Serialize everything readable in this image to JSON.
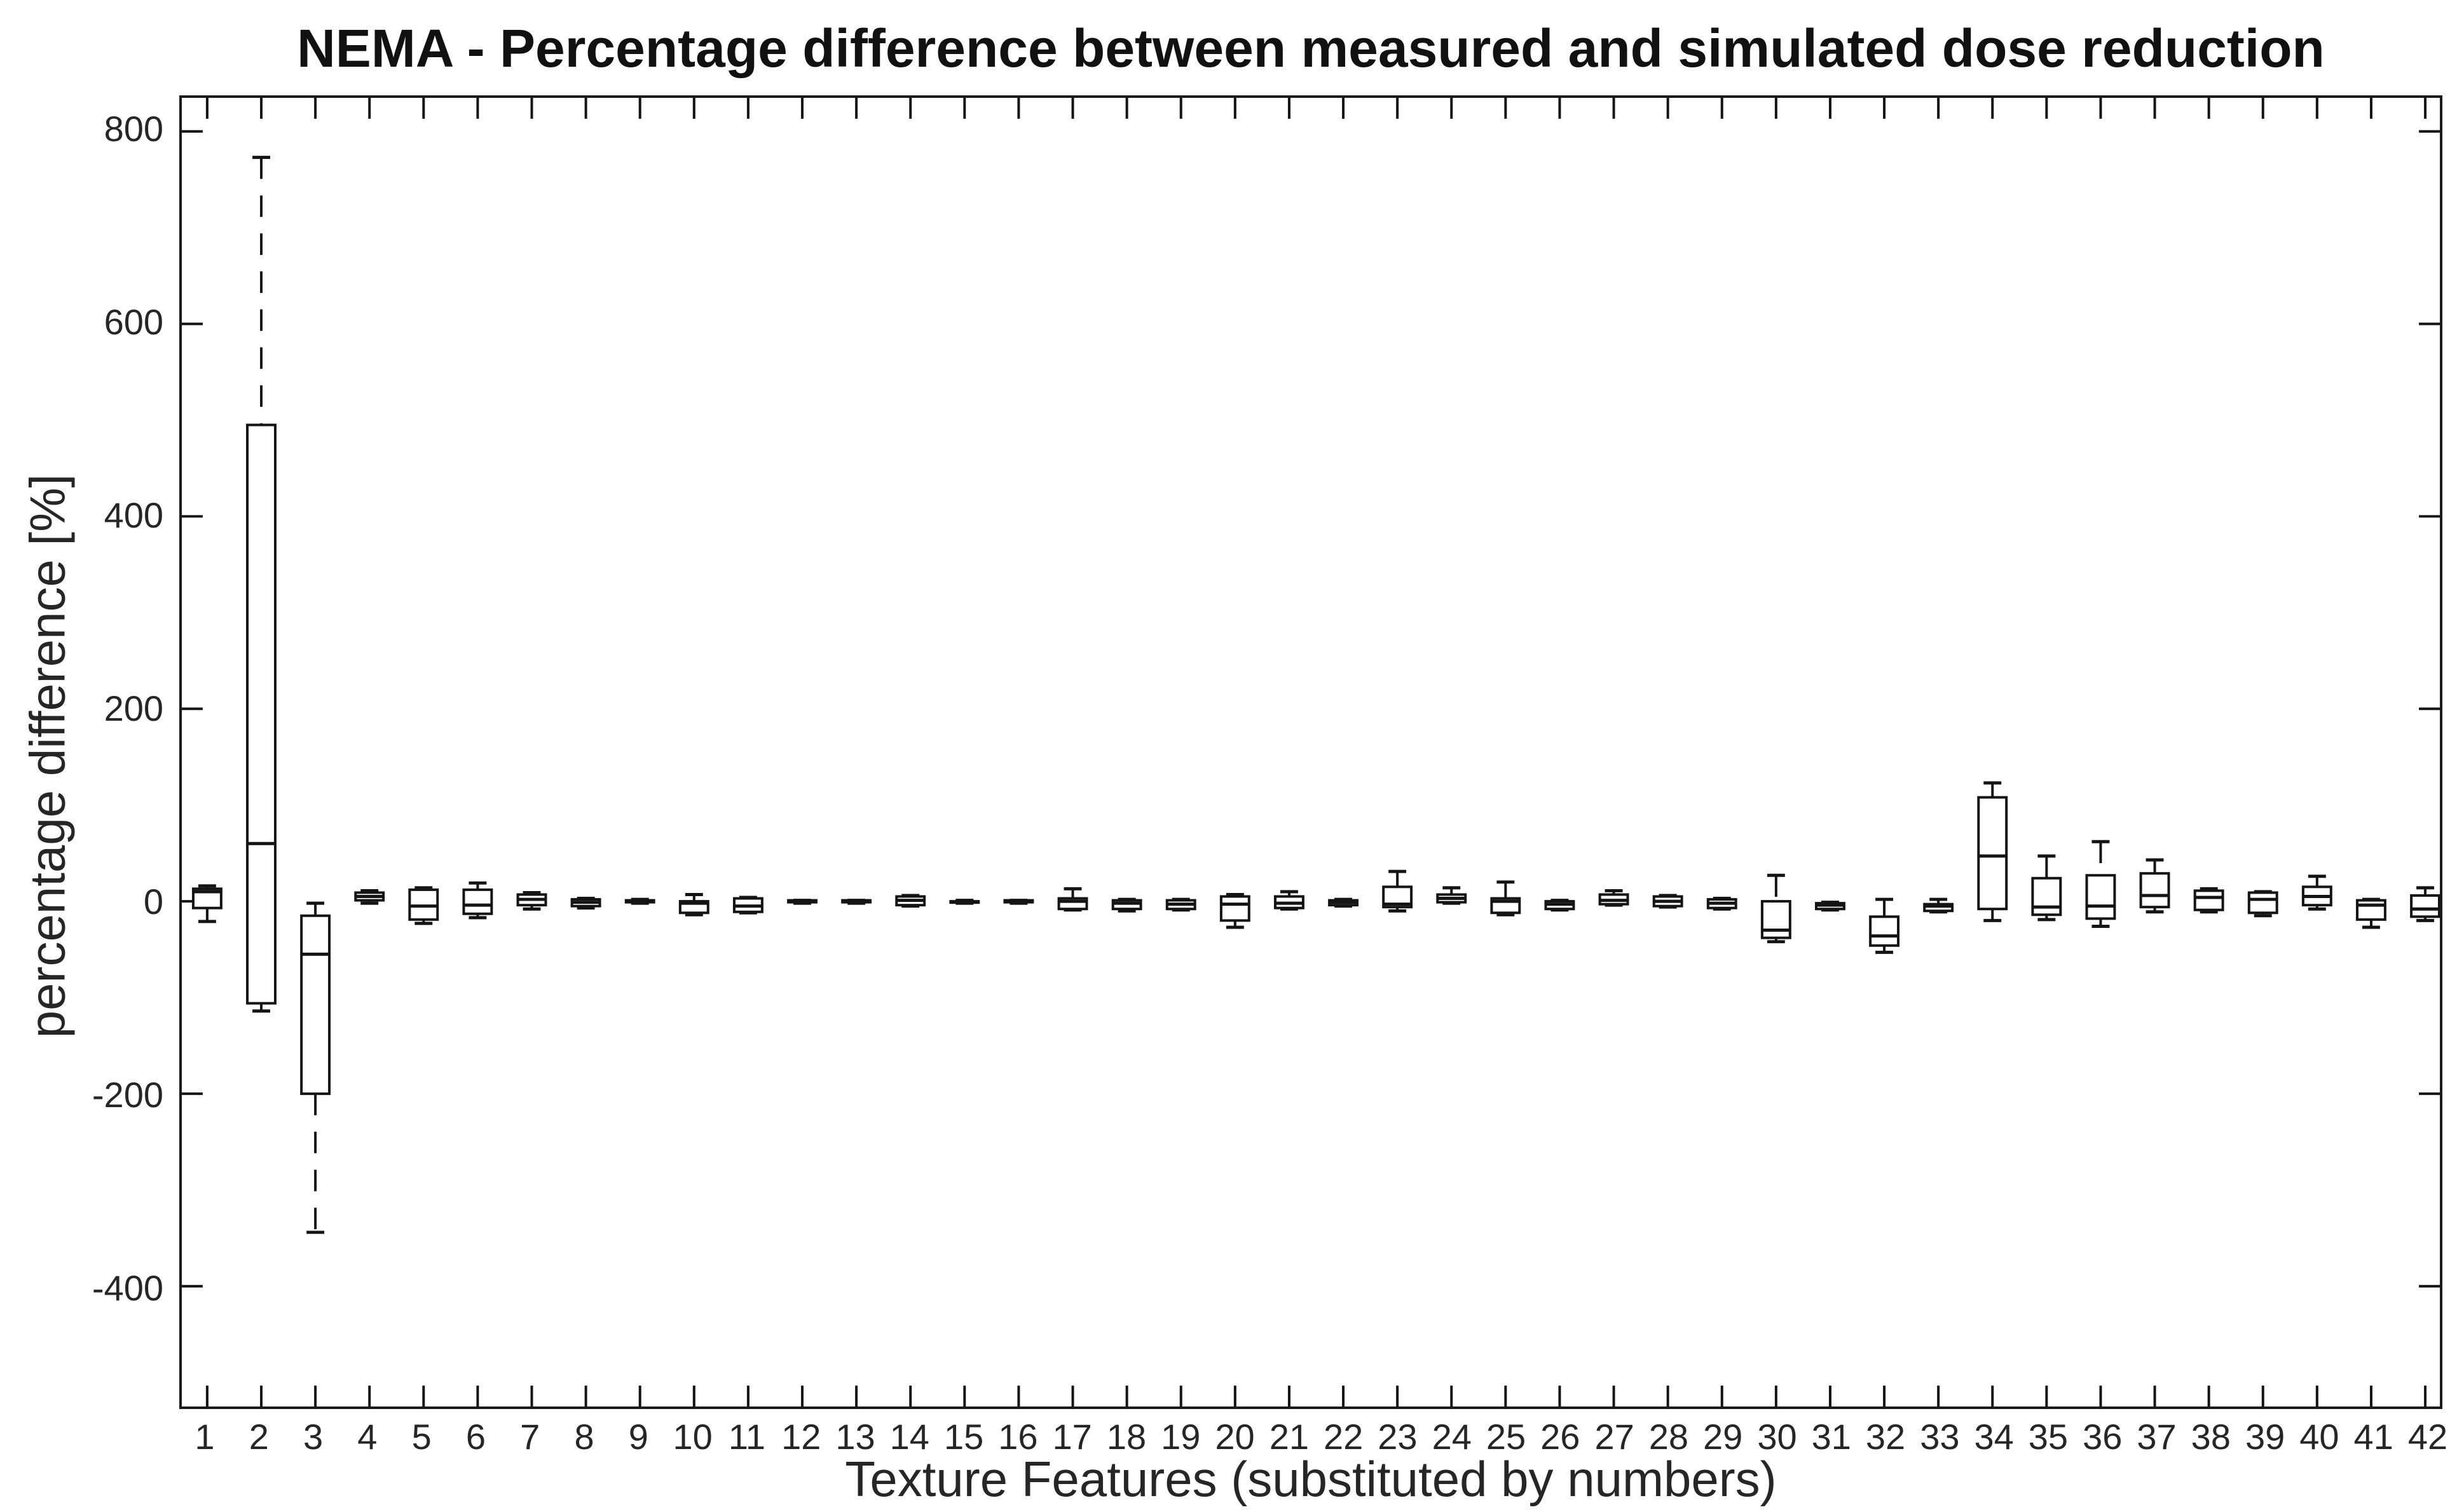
{
  "chart_data": {
    "type": "boxplot",
    "title": "NEMA - Percentage difference between measured and simulated dose reduction",
    "xlabel": "Texture Features (substituted by numbers)",
    "ylabel": "percentage difference [%]",
    "x_tick_labels": [
      "1",
      "2",
      "3",
      "4",
      "5",
      "6",
      "7",
      "8",
      "9",
      "10",
      "11",
      "12",
      "13",
      "14",
      "15",
      "16",
      "17",
      "18",
      "19",
      "20",
      "21",
      "22",
      "23",
      "24",
      "25",
      "26",
      "27",
      "28",
      "29",
      "30",
      "31",
      "32",
      "33",
      "34",
      "35",
      "36",
      "37",
      "38",
      "39",
      "40",
      "41",
      "42"
    ],
    "y_ticks": [
      800,
      600,
      400,
      200,
      0,
      -200,
      -400
    ],
    "ylim": [
      -525,
      835
    ],
    "xlim": [
      0.5,
      42.5
    ],
    "grid": false,
    "legend": "none",
    "boxes": [
      {
        "x": 1,
        "whisker_low": -21,
        "q1": -7,
        "median": 10,
        "q3": 13,
        "whisker_high": 16
      },
      {
        "x": 2,
        "whisker_low": -114,
        "q1": -106,
        "median": 60,
        "q3": 495,
        "whisker_high": 773
      },
      {
        "x": 3,
        "whisker_low": -344,
        "q1": -200,
        "median": -55,
        "q3": -15,
        "whisker_high": -2
      },
      {
        "x": 4,
        "whisker_low": -2,
        "q1": 1,
        "median": 5,
        "q3": 9,
        "whisker_high": 11
      },
      {
        "x": 5,
        "whisker_low": -23,
        "q1": -19,
        "median": -5,
        "q3": 12,
        "whisker_high": 14
      },
      {
        "x": 6,
        "whisker_low": -17,
        "q1": -13,
        "median": -4,
        "q3": 12,
        "whisker_high": 19
      },
      {
        "x": 7,
        "whisker_low": -8,
        "q1": -4,
        "median": 2,
        "q3": 7,
        "whisker_high": 9
      },
      {
        "x": 8,
        "whisker_low": -7,
        "q1": -5,
        "median": -1,
        "q3": 2,
        "whisker_high": 3
      },
      {
        "x": 9,
        "whisker_low": -2,
        "q1": -1,
        "median": 0,
        "q3": 1,
        "whisker_high": 2
      },
      {
        "x": 10,
        "whisker_low": -14,
        "q1": -12,
        "median": -2,
        "q3": 0,
        "whisker_high": 7
      },
      {
        "x": 11,
        "whisker_low": -12,
        "q1": -11,
        "median": -5,
        "q3": 3,
        "whisker_high": 4
      },
      {
        "x": 12,
        "whisker_low": -2,
        "q1": -1,
        "median": 0,
        "q3": 1,
        "whisker_high": 1
      },
      {
        "x": 13,
        "whisker_low": -2,
        "q1": -1,
        "median": 0,
        "q3": 1,
        "whisker_high": 1
      },
      {
        "x": 14,
        "whisker_low": -5,
        "q1": -4,
        "median": 1,
        "q3": 5,
        "whisker_high": 6
      },
      {
        "x": 15,
        "whisker_low": -2,
        "q1": -1,
        "median": -1,
        "q3": 0,
        "whisker_high": 1
      },
      {
        "x": 16,
        "whisker_low": -2,
        "q1": -1,
        "median": 0,
        "q3": 1,
        "whisker_high": 1
      },
      {
        "x": 17,
        "whisker_low": -9,
        "q1": -8,
        "median": 0,
        "q3": 3,
        "whisker_high": 13
      },
      {
        "x": 18,
        "whisker_low": -10,
        "q1": -8,
        "median": -2,
        "q3": 1,
        "whisker_high": 2
      },
      {
        "x": 19,
        "whisker_low": -9,
        "q1": -8,
        "median": -3,
        "q3": 1,
        "whisker_high": 2
      },
      {
        "x": 20,
        "whisker_low": -27,
        "q1": -20,
        "median": -3,
        "q3": 5,
        "whisker_high": 7
      },
      {
        "x": 21,
        "whisker_low": -8,
        "q1": -7,
        "median": -2,
        "q3": 5,
        "whisker_high": 10
      },
      {
        "x": 22,
        "whisker_low": -5,
        "q1": -4,
        "median": -1,
        "q3": 1,
        "whisker_high": 2
      },
      {
        "x": 23,
        "whisker_low": -10,
        "q1": -6,
        "median": -3,
        "q3": 15,
        "whisker_high": 31
      },
      {
        "x": 24,
        "whisker_low": -2,
        "q1": -1,
        "median": 3,
        "q3": 7,
        "whisker_high": 14
      },
      {
        "x": 25,
        "whisker_low": -14,
        "q1": -12,
        "median": 0,
        "q3": 3,
        "whisker_high": 20
      },
      {
        "x": 26,
        "whisker_low": -9,
        "q1": -8,
        "median": -3,
        "q3": 0,
        "whisker_high": 1
      },
      {
        "x": 27,
        "whisker_low": -4,
        "q1": -3,
        "median": 1,
        "q3": 7,
        "whisker_high": 11
      },
      {
        "x": 28,
        "whisker_low": -6,
        "q1": -5,
        "median": 0,
        "q3": 5,
        "whisker_high": 6
      },
      {
        "x": 29,
        "whisker_low": -8,
        "q1": -7,
        "median": -2,
        "q3": 2,
        "whisker_high": 3
      },
      {
        "x": 30,
        "whisker_low": -42,
        "q1": -38,
        "median": -30,
        "q3": 0,
        "whisker_high": 27
      },
      {
        "x": 31,
        "whisker_low": -9,
        "q1": -8,
        "median": -4,
        "q3": -2,
        "whisker_high": -1
      },
      {
        "x": 32,
        "whisker_low": -53,
        "q1": -46,
        "median": -36,
        "q3": -16,
        "whisker_high": 2
      },
      {
        "x": 33,
        "whisker_low": -11,
        "q1": -10,
        "median": -5,
        "q3": -3,
        "whisker_high": 2
      },
      {
        "x": 34,
        "whisker_low": -20,
        "q1": -8,
        "median": 47,
        "q3": 108,
        "whisker_high": 123
      },
      {
        "x": 35,
        "whisker_low": -19,
        "q1": -14,
        "median": -6,
        "q3": 24,
        "whisker_high": 47
      },
      {
        "x": 36,
        "whisker_low": -26,
        "q1": -18,
        "median": -5,
        "q3": 27,
        "whisker_high": 62
      },
      {
        "x": 37,
        "whisker_low": -11,
        "q1": -6,
        "median": 6,
        "q3": 29,
        "whisker_high": 43
      },
      {
        "x": 38,
        "whisker_low": -11,
        "q1": -9,
        "median": 4,
        "q3": 11,
        "whisker_high": 13
      },
      {
        "x": 39,
        "whisker_low": -15,
        "q1": -12,
        "median": 2,
        "q3": 9,
        "whisker_high": 10
      },
      {
        "x": 40,
        "whisker_low": -8,
        "q1": -4,
        "median": 5,
        "q3": 15,
        "whisker_high": 26
      },
      {
        "x": 41,
        "whisker_low": -27,
        "q1": -19,
        "median": -4,
        "q3": 1,
        "whisker_high": 2
      },
      {
        "x": 42,
        "whisker_low": -20,
        "q1": -16,
        "median": -8,
        "q3": 6,
        "whisker_high": 14
      }
    ]
  },
  "styles": {
    "line_color": "#141414",
    "axis_color": "#1a1a1a",
    "text_color": "#262626",
    "title_color": "#111111",
    "background": "#ffffff"
  }
}
